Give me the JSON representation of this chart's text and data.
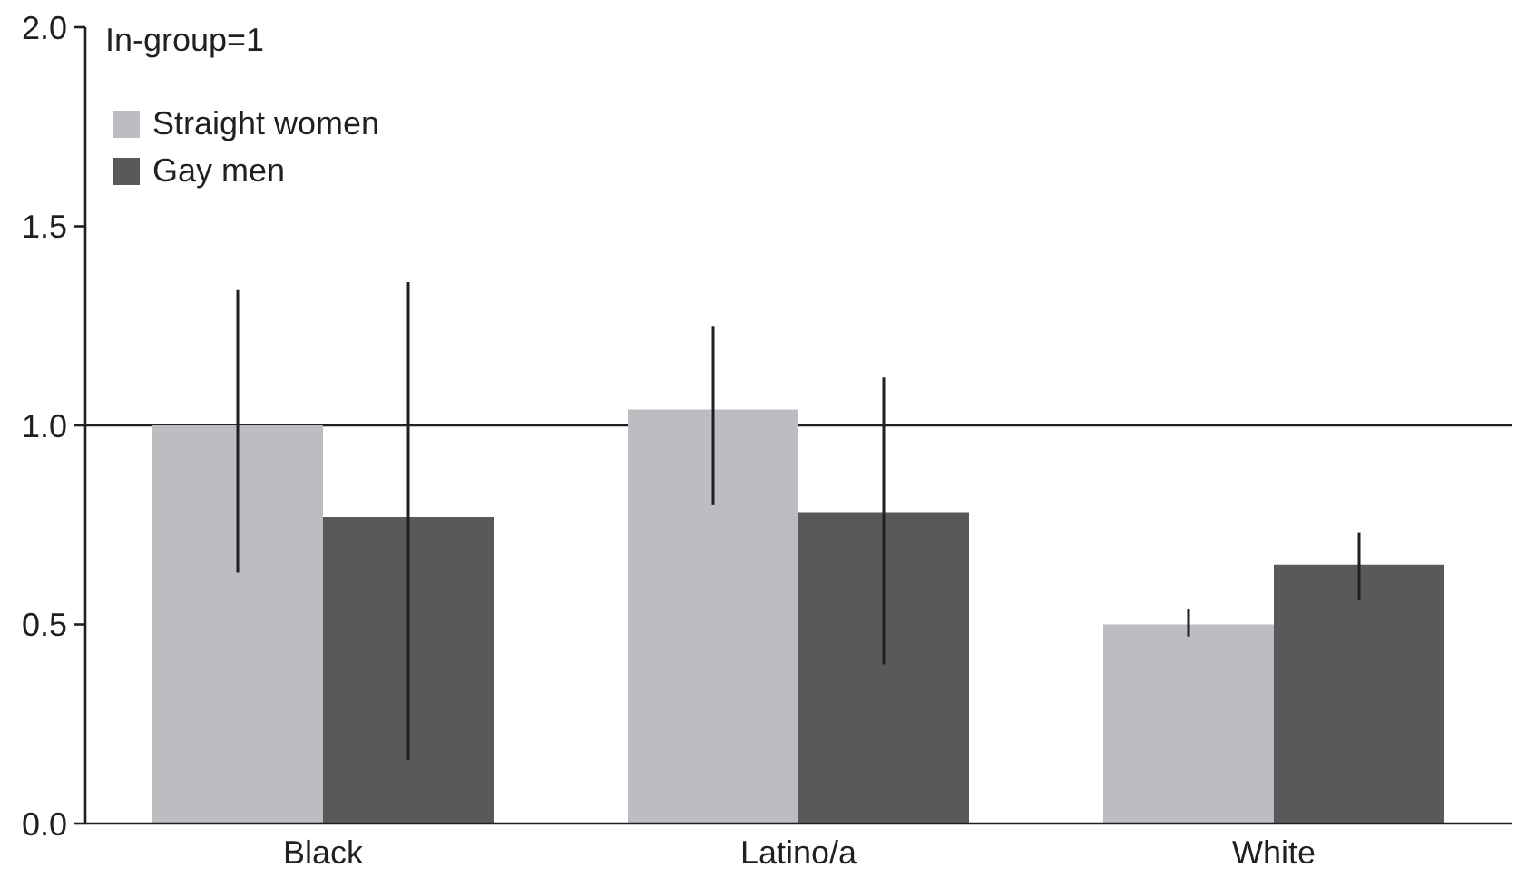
{
  "chart_data": {
    "type": "bar",
    "categories": [
      "Black",
      "Latino/a",
      "White"
    ],
    "series": [
      {
        "name": "Straight women",
        "color": "#bcbdc0",
        "values": [
          1,
          1.04,
          0.5
        ],
        "errors": [
          [
            0.63,
            1.34
          ],
          [
            0.8,
            1.25
          ],
          [
            0.47,
            0.54
          ]
        ]
      },
      {
        "name": "Gay men",
        "color": "#58595b",
        "values": [
          0.77,
          0.78,
          0.65
        ],
        "errors": [
          [
            0.16,
            1.36
          ],
          [
            0.4,
            1.12
          ],
          [
            0.56,
            0.73
          ]
        ]
      }
    ],
    "ylim": [
      0,
      2
    ],
    "yticks": [
      {
        "value": 0,
        "label": "0.0"
      },
      {
        "value": 0.5,
        "label": "0.5"
      },
      {
        "value": 1,
        "label": "1.0"
      },
      {
        "value": 1.5,
        "label": "1.5"
      },
      {
        "value": 2,
        "label": "2.0"
      }
    ],
    "ref_lines": [
      {
        "axis": "y",
        "value": 1,
        "color": "#231f20"
      }
    ],
    "annotations": [
      "In-group=1"
    ],
    "legend": "top left"
  }
}
